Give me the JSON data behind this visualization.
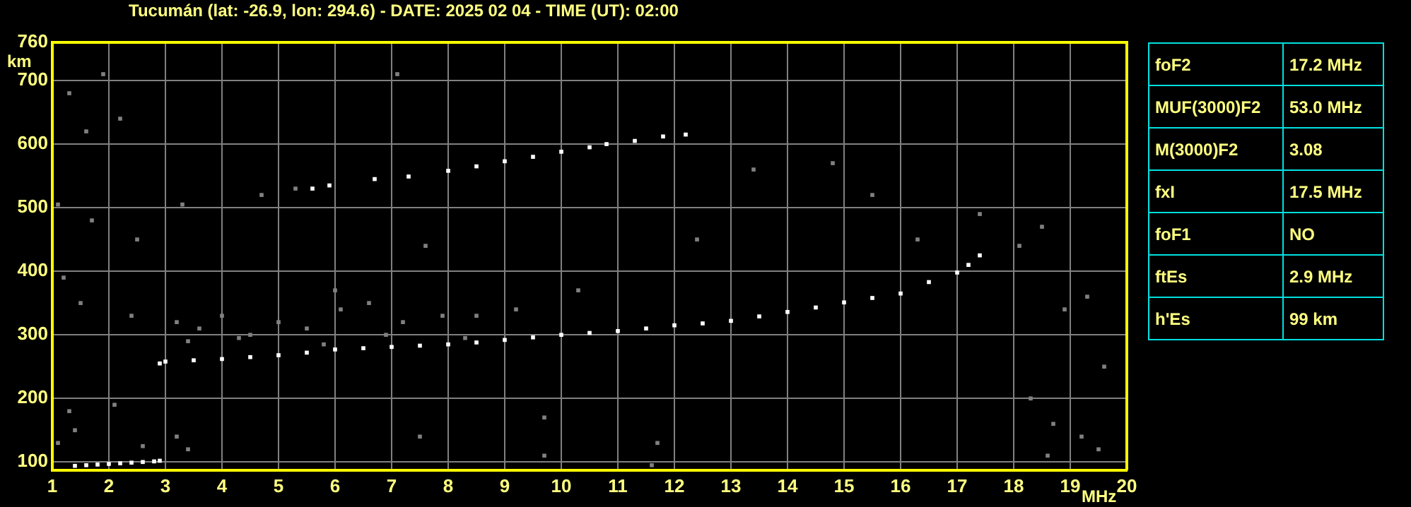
{
  "chart_data": {
    "type": "scatter",
    "title": "Tucumán (lat: -26.9, lon: 294.6) - DATE: 2025 02 04 - TIME (UT): 02:00",
    "xlabel": "MHz",
    "ylabel": "km",
    "xlim": [
      1,
      20
    ],
    "xticks": [
      1,
      2,
      3,
      4,
      5,
      6,
      7,
      8,
      9,
      10,
      11,
      12,
      13,
      14,
      15,
      16,
      17,
      18,
      19,
      20
    ],
    "ylim": [
      87,
      760
    ],
    "yticks": [
      100,
      200,
      300,
      400,
      500,
      600,
      700,
      760
    ],
    "grid": true,
    "legend": false,
    "marker": "square",
    "series": [
      {
        "color": "#808080",
        "x": [
          1.1,
          1.3,
          1.6,
          1.9,
          2.2,
          1.2,
          1.5,
          2.4,
          1.1,
          1.4,
          1.7,
          2.5,
          3.3,
          4.7,
          5.3,
          7.1,
          7.6,
          6.0,
          9.7,
          11.7,
          12.4,
          13.4,
          14.8,
          15.5,
          16.3,
          17.4,
          18.1,
          18.5,
          18.9,
          19.3,
          19.6,
          18.3,
          18.7,
          19.5,
          11.6,
          10.3,
          7.5,
          9.7,
          3.2,
          3.6,
          4.0,
          4.5,
          5.0,
          5.5,
          6.1,
          6.6,
          7.2,
          7.9,
          8.5,
          9.2,
          3.4,
          4.3,
          5.8,
          6.9,
          8.3,
          2.6,
          3.2,
          3.4,
          1.3,
          2.1,
          18.6,
          19.2
        ],
        "values": [
          505,
          680,
          620,
          710,
          640,
          390,
          350,
          330,
          130,
          150,
          480,
          450,
          505,
          520,
          530,
          710,
          440,
          370,
          110,
          130,
          450,
          560,
          570,
          520,
          450,
          490,
          440,
          470,
          340,
          360,
          250,
          200,
          160,
          120,
          95,
          370,
          140,
          170,
          320,
          310,
          330,
          300,
          320,
          310,
          340,
          350,
          320,
          330,
          330,
          340,
          290,
          295,
          285,
          300,
          295,
          125,
          140,
          120,
          180,
          190,
          110,
          140
        ]
      },
      {
        "color": "#ffffff",
        "x": [
          2.9,
          3,
          3.5,
          4,
          4.5,
          5,
          5.5,
          6,
          6.5,
          7,
          7.5,
          8,
          8.5,
          9,
          9.5,
          10,
          10.5,
          11,
          11.5,
          12,
          12.5,
          13,
          13.5,
          14,
          14.5,
          15,
          15.5,
          16,
          16.5,
          17,
          17.2,
          17.4
        ],
        "values": [
          255,
          258,
          260,
          262,
          265,
          268,
          272,
          277,
          279,
          281,
          283,
          285,
          288,
          292,
          296,
          300,
          303,
          306,
          310,
          315,
          318,
          322,
          329,
          336,
          343,
          351,
          358,
          365,
          383,
          398,
          410,
          425
        ]
      },
      {
        "color": "#ffffff",
        "x": [
          5.6,
          5.9,
          6.7,
          7.3,
          8,
          8.5,
          9,
          9.5,
          10,
          10.5,
          10.8,
          11.3,
          11.8,
          12.2
        ],
        "values": [
          530,
          535,
          545,
          549,
          558,
          565,
          573,
          580,
          588,
          595,
          600,
          605,
          612,
          615
        ]
      },
      {
        "color": "#ffffff",
        "x": [
          1.4,
          1.6,
          1.8,
          2,
          2.2,
          2.4,
          2.6,
          2.8,
          2.9
        ],
        "values": [
          94,
          95,
          96,
          97,
          98,
          99,
          100,
          101,
          102
        ]
      }
    ],
    "annotations": [
      "foF2",
      "17.2 MHz",
      "MUF(3000)F2",
      "53.0 MHz",
      "M(3000)F2",
      "3.08",
      "fxI",
      "17.5 MHz",
      "foF1",
      "NO",
      "ftEs",
      "2.9 MHz",
      "h'Es",
      "99 km"
    ]
  }
}
